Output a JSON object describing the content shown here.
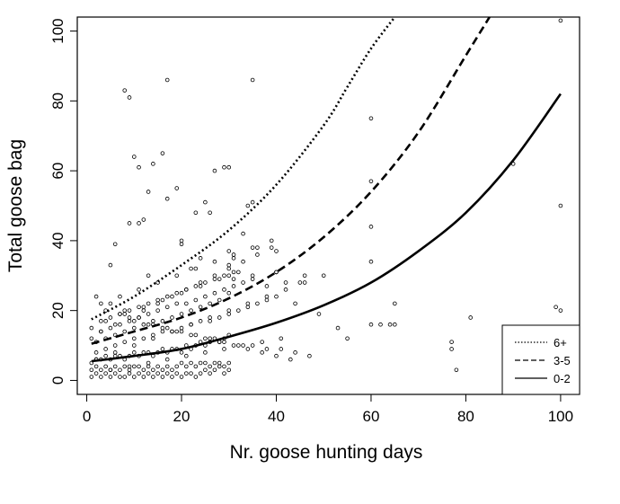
{
  "chart_data": {
    "type": "scatter",
    "title": "",
    "xlabel": "Nr. goose hunting days",
    "ylabel": "Total goose bag",
    "xlim": [
      -2,
      104
    ],
    "ylim": [
      -4,
      104
    ],
    "x_ticks": [
      0,
      20,
      40,
      60,
      80,
      100
    ],
    "y_ticks": [
      0,
      20,
      40,
      60,
      80,
      100
    ],
    "grid": false,
    "legend": {
      "position": "bottom-right",
      "entries": [
        {
          "label": "6+",
          "style": "dotted"
        },
        {
          "label": "3-5",
          "style": "dashed"
        },
        {
          "label": "0-2",
          "style": "solid"
        }
      ]
    },
    "curves": [
      {
        "name": "6+",
        "style": "dotted",
        "x": [
          1,
          10,
          20,
          30,
          40,
          50,
          55,
          60,
          65
        ],
        "y": [
          17.5,
          24,
          33,
          43,
          56,
          73,
          84,
          95,
          104
        ]
      },
      {
        "name": "3-5",
        "style": "dashed",
        "x": [
          1,
          10,
          20,
          30,
          40,
          50,
          60,
          70,
          80,
          85
        ],
        "y": [
          10.5,
          14,
          18,
          23.5,
          31,
          41,
          54,
          71,
          93,
          104
        ]
      },
      {
        "name": "0-2",
        "style": "solid",
        "x": [
          1,
          10,
          20,
          30,
          40,
          50,
          60,
          70,
          80,
          90,
          100
        ],
        "y": [
          5.5,
          7,
          9,
          12.5,
          16.5,
          21.5,
          28,
          37,
          48,
          63,
          82
        ]
      }
    ],
    "points": {
      "x": [
        8,
        9,
        17,
        35,
        10,
        11,
        16,
        14,
        27,
        29,
        30,
        60,
        60,
        13,
        17,
        25,
        23,
        12,
        35,
        11,
        20,
        20,
        30,
        31,
        33,
        36,
        22,
        30,
        40,
        60,
        38,
        40,
        45,
        46,
        60,
        5,
        24,
        30,
        31,
        35,
        40,
        64,
        65,
        81,
        77,
        100,
        100,
        100,
        6,
        9,
        13,
        19,
        26,
        34,
        42,
        44,
        49,
        53,
        55,
        60,
        62,
        65,
        77,
        78,
        90,
        99,
        1,
        2,
        3,
        4,
        5,
        6,
        7,
        8,
        9,
        10,
        11,
        12,
        13,
        14,
        15,
        16,
        17,
        18,
        19,
        20,
        21,
        22,
        23,
        24,
        25,
        26,
        27,
        28,
        29,
        30,
        1,
        2,
        3,
        4,
        5,
        6,
        7,
        8,
        9,
        10,
        11,
        12,
        13,
        14,
        15,
        16,
        17,
        18,
        19,
        20,
        21,
        22,
        23,
        24,
        25,
        26,
        27,
        28,
        29,
        30,
        1,
        2,
        3,
        4,
        5,
        6,
        7,
        8,
        9,
        10,
        11,
        12,
        13,
        14,
        15,
        16,
        17,
        18,
        19,
        20,
        21,
        22,
        23,
        24,
        25,
        26,
        27,
        28,
        29,
        30,
        2,
        4,
        6,
        8,
        10,
        12,
        14,
        16,
        18,
        20,
        22,
        24,
        26,
        28,
        30,
        32,
        34,
        36,
        38,
        40,
        2,
        4,
        6,
        8,
        10,
        12,
        14,
        16,
        18,
        20,
        22,
        24,
        26,
        28,
        30,
        3,
        5,
        7,
        9,
        11,
        13,
        15,
        17,
        19,
        21,
        23,
        25,
        27,
        29,
        31,
        33,
        35,
        3,
        5,
        7,
        9,
        11,
        13,
        15,
        17,
        19,
        21,
        23,
        25,
        27,
        29,
        31,
        2,
        5,
        8,
        11,
        14,
        17,
        20,
        23,
        26,
        29,
        32,
        35,
        38,
        41,
        44,
        47,
        4,
        7,
        10,
        13,
        16,
        19,
        22,
        25,
        28,
        31,
        34,
        37,
        40,
        43,
        1,
        3,
        6,
        9,
        12,
        15,
        18,
        21,
        24,
        27,
        30,
        33,
        36,
        39,
        2,
        6,
        10,
        14,
        18,
        22,
        26,
        30,
        34,
        38,
        42,
        46,
        50,
        5,
        9,
        13,
        17,
        21,
        25,
        29,
        33,
        37,
        41,
        3,
        7,
        11,
        15,
        19,
        23,
        27,
        31,
        35,
        39,
        1,
        4,
        8,
        12,
        16,
        20,
        24,
        28,
        32
      ],
      "y": [
        83,
        81,
        86,
        86,
        64,
        61,
        65,
        62,
        60,
        61,
        61,
        75,
        57,
        54,
        52,
        51,
        48,
        46,
        51,
        45,
        40,
        39,
        37,
        35,
        42,
        38,
        32,
        33,
        37,
        44,
        27,
        31,
        28,
        30,
        34,
        33,
        35,
        30,
        29,
        30,
        31,
        16,
        22,
        18,
        11,
        103,
        50,
        20,
        39,
        45,
        30,
        55,
        48,
        50,
        28,
        22,
        19,
        15,
        12,
        16,
        16,
        16,
        9,
        3,
        62,
        21,
        1,
        2,
        1,
        2,
        1,
        2,
        1,
        1,
        2,
        1,
        2,
        1,
        2,
        1,
        2,
        1,
        2,
        1,
        2,
        1,
        2,
        2,
        1,
        2,
        3,
        2,
        3,
        4,
        2,
        3,
        3,
        4,
        3,
        4,
        3,
        4,
        3,
        4,
        3,
        4,
        4,
        3,
        4,
        3,
        4,
        3,
        4,
        3,
        4,
        5,
        4,
        5,
        4,
        5,
        5,
        4,
        5,
        5,
        4,
        5,
        5,
        6,
        6,
        7,
        6,
        7,
        7,
        6,
        7,
        8,
        7,
        8,
        8,
        7,
        8,
        9,
        8,
        9,
        9,
        8,
        10,
        9,
        10,
        11,
        10,
        11,
        12,
        11,
        12,
        13,
        8,
        9,
        10,
        11,
        12,
        12,
        13,
        14,
        14,
        15,
        16,
        17,
        17,
        18,
        19,
        20,
        21,
        22,
        23,
        24,
        11,
        12,
        13,
        14,
        15,
        16,
        17,
        17,
        18,
        19,
        20,
        21,
        22,
        23,
        25,
        14,
        15,
        16,
        17,
        18,
        19,
        20,
        21,
        22,
        22,
        23,
        24,
        25,
        26,
        27,
        28,
        29,
        17,
        18,
        19,
        20,
        21,
        22,
        23,
        24,
        25,
        26,
        27,
        28,
        29,
        30,
        31,
        24,
        22,
        20,
        18,
        16,
        15,
        14,
        13,
        12,
        11,
        10,
        10,
        9,
        9,
        8,
        7,
        20,
        19,
        17,
        16,
        15,
        14,
        13,
        12,
        11,
        10,
        9,
        8,
        7,
        6,
        12,
        14,
        16,
        18,
        20,
        22,
        24,
        26,
        28,
        30,
        32,
        34,
        36,
        38,
        6,
        8,
        10,
        12,
        14,
        16,
        18,
        20,
        22,
        24,
        26,
        28,
        30,
        3,
        4,
        5,
        6,
        7,
        8,
        9,
        10,
        11,
        12,
        22,
        24,
        26,
        28,
        30,
        32,
        34,
        36,
        38,
        40,
        15,
        17,
        19,
        21,
        23,
        25,
        27,
        29,
        31
      ]
    }
  }
}
